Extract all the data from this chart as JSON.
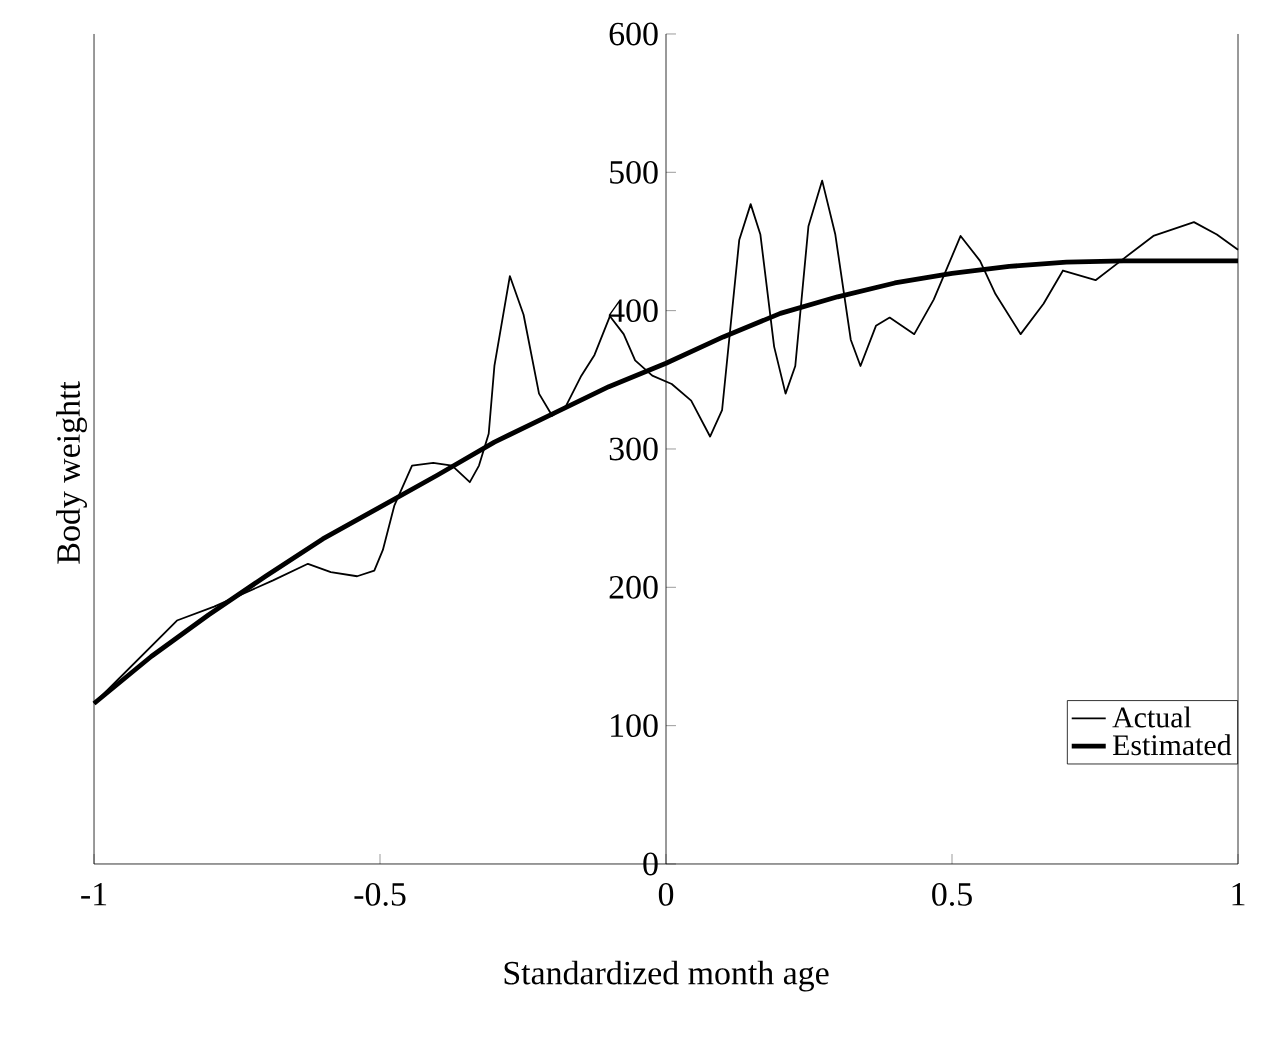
{
  "chart_data": {
    "type": "line",
    "xlabel": "Standardized month age",
    "ylabel": "Body weightt",
    "xlim": [
      -1,
      1
    ],
    "ylim": [
      0,
      600
    ],
    "xticks": [
      -1,
      -0.5,
      0,
      0.5,
      1
    ],
    "yticks": [
      0,
      100,
      200,
      300,
      400,
      500,
      600
    ],
    "legend": "bottom right",
    "series": [
      {
        "name": "Actual",
        "color": "#000000",
        "x": [
          -1,
          -0.855,
          -0.79,
          -0.687,
          -0.626,
          -0.586,
          -0.54,
          -0.51,
          -0.495,
          -0.475,
          -0.444,
          -0.407,
          -0.374,
          -0.343,
          -0.327,
          -0.31,
          -0.3,
          -0.273,
          -0.249,
          -0.222,
          -0.199,
          -0.175,
          -0.148,
          -0.125,
          -0.098,
          -0.074,
          -0.054,
          -0.024,
          0.01,
          0.044,
          0.077,
          0.098,
          0.128,
          0.148,
          0.165,
          0.189,
          0.209,
          0.226,
          0.249,
          0.273,
          0.296,
          0.323,
          0.34,
          0.367,
          0.391,
          0.434,
          0.468,
          0.515,
          0.549,
          0.576,
          0.62,
          0.66,
          0.694,
          0.751,
          0.795,
          0.852,
          0.923,
          0.963,
          1
        ],
        "values": [
          116,
          176,
          186,
          205,
          217,
          211,
          208,
          212,
          227,
          259,
          288,
          290,
          288,
          276,
          288,
          311,
          360,
          425,
          397,
          340,
          324,
          331,
          353,
          368,
          396,
          383,
          364,
          353,
          347,
          335,
          309,
          328,
          451,
          477,
          455,
          374,
          340,
          360,
          461,
          494,
          455,
          379,
          360,
          389,
          395,
          383,
          408,
          454,
          436,
          412,
          383,
          405,
          429,
          422,
          436,
          454,
          464,
          455,
          444
        ]
      },
      {
        "name": "Estimated",
        "color": "#000000",
        "x": [
          -1,
          -0.9,
          -0.8,
          -0.7,
          -0.6,
          -0.5,
          -0.4,
          -0.3,
          -0.2,
          -0.1,
          0,
          0.1,
          0.2,
          0.3,
          0.4,
          0.5,
          0.6,
          0.7,
          0.8,
          1
        ],
        "values": [
          116,
          150,
          180,
          208,
          235,
          258,
          281,
          305,
          325,
          345,
          362,
          381,
          398,
          410,
          420,
          427,
          432,
          435,
          436,
          436
        ]
      }
    ]
  }
}
